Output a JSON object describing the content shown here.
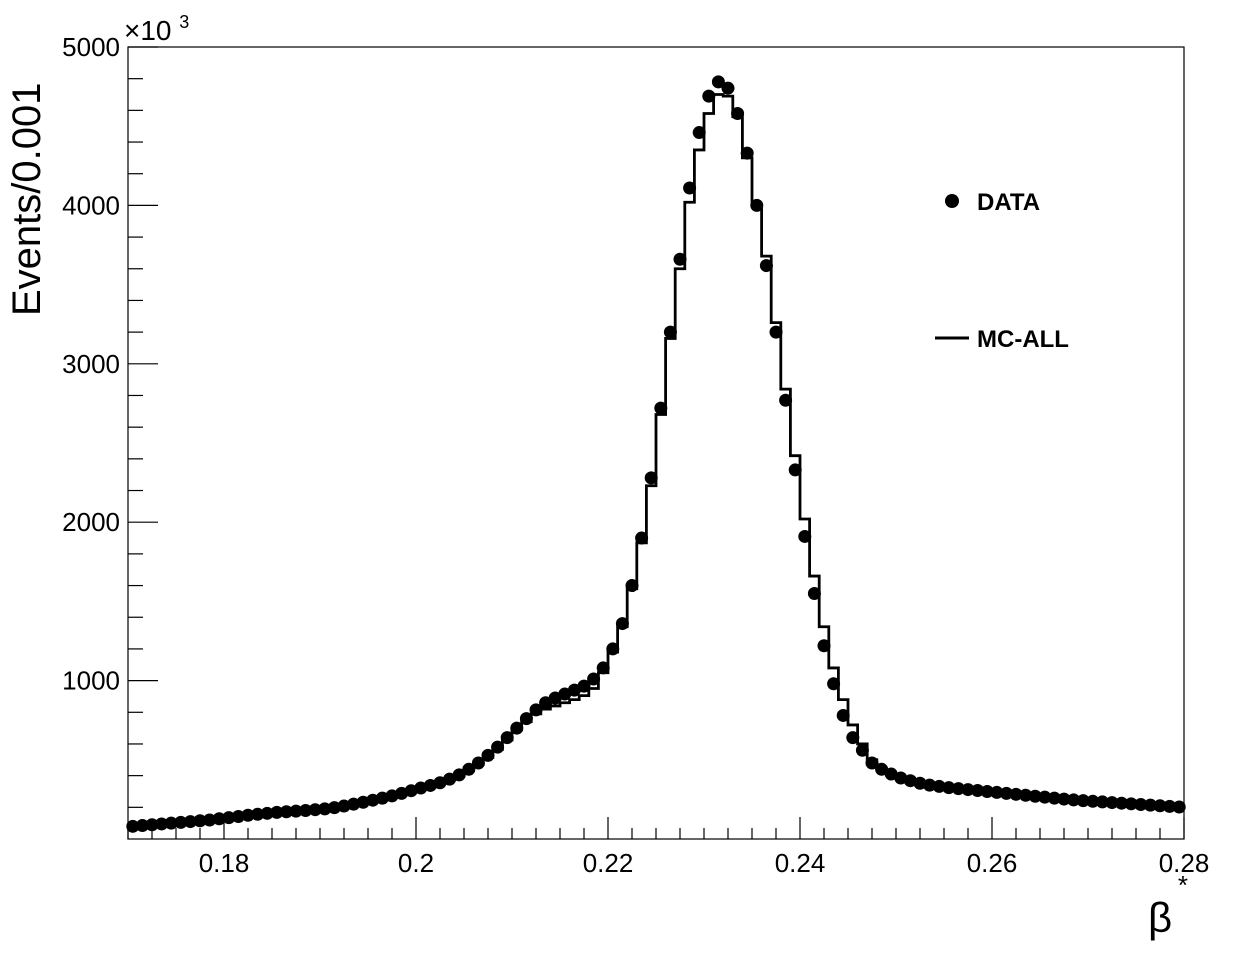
{
  "chart_data": {
    "type": "scatter",
    "title": "",
    "xlabel": "β",
    "xlabel_superscript": "*",
    "ylabel": "Events/0.001",
    "y_multiplier": "×10",
    "y_multiplier_exp": "3",
    "xlim": [
      0.17,
      0.28
    ],
    "ylim": [
      0,
      5000
    ],
    "x_ticks": [
      0.18,
      0.2,
      0.22,
      0.24,
      0.26,
      0.28
    ],
    "x_tick_labels": [
      "0.18",
      "0.2",
      "0.22",
      "0.24",
      "0.26",
      "0.28"
    ],
    "y_ticks": [
      1000,
      2000,
      3000,
      4000,
      5000
    ],
    "y_tick_labels": [
      "1000",
      "2000",
      "3000",
      "4000",
      "5000"
    ],
    "grid": false,
    "legend_position": "top-right",
    "bin_width": 0.001,
    "series": [
      {
        "name": "DATA",
        "style": "markers",
        "color": "#000000",
        "x": [
          0.1705,
          0.1715,
          0.1725,
          0.1735,
          0.1745,
          0.1755,
          0.1765,
          0.1775,
          0.1785,
          0.1795,
          0.1805,
          0.1815,
          0.1825,
          0.1835,
          0.1845,
          0.1855,
          0.1865,
          0.1875,
          0.1885,
          0.1895,
          0.1905,
          0.1915,
          0.1925,
          0.1935,
          0.1945,
          0.1955,
          0.1965,
          0.1975,
          0.1985,
          0.1995,
          0.2005,
          0.2015,
          0.2025,
          0.2035,
          0.2045,
          0.2055,
          0.2065,
          0.2075,
          0.2085,
          0.2095,
          0.2105,
          0.2115,
          0.2125,
          0.2135,
          0.2145,
          0.2155,
          0.2165,
          0.2175,
          0.2185,
          0.2195,
          0.2205,
          0.2215,
          0.2225,
          0.2235,
          0.2245,
          0.2255,
          0.2265,
          0.2275,
          0.2285,
          0.2295,
          0.2305,
          0.2315,
          0.2325,
          0.2335,
          0.2345,
          0.2355,
          0.2365,
          0.2375,
          0.2385,
          0.2395,
          0.2405,
          0.2415,
          0.2425,
          0.2435,
          0.2445,
          0.2455,
          0.2465,
          0.2475,
          0.2485,
          0.2495,
          0.2505,
          0.2515,
          0.2525,
          0.2535,
          0.2545,
          0.2555,
          0.2565,
          0.2575,
          0.2585,
          0.2595,
          0.2605,
          0.2615,
          0.2625,
          0.2635,
          0.2645,
          0.2655,
          0.2665,
          0.2675,
          0.2685,
          0.2695,
          0.2705,
          0.2715,
          0.2725,
          0.2735,
          0.2745,
          0.2755,
          0.2765,
          0.2775,
          0.2785,
          0.2795
        ],
        "y": [
          80,
          85,
          90,
          95,
          100,
          105,
          110,
          115,
          120,
          128,
          135,
          142,
          150,
          156,
          162,
          168,
          172,
          176,
          180,
          185,
          190,
          198,
          208,
          220,
          232,
          245,
          258,
          272,
          288,
          305,
          322,
          338,
          355,
          378,
          405,
          440,
          480,
          528,
          580,
          640,
          700,
          760,
          815,
          860,
          890,
          915,
          940,
          965,
          1010,
          1080,
          1200,
          1360,
          1600,
          1900,
          2280,
          2720,
          3200,
          3660,
          4110,
          4460,
          4690,
          4780,
          4740,
          4580,
          4330,
          4000,
          3620,
          3200,
          2770,
          2330,
          1910,
          1550,
          1220,
          980,
          780,
          640,
          560,
          480,
          440,
          410,
          385,
          368,
          352,
          340,
          332,
          324,
          318,
          312,
          306,
          300,
          294,
          288,
          282,
          276,
          270,
          264,
          258,
          252,
          247,
          242,
          238,
          234,
          230,
          226,
          222,
          218,
          214,
          210,
          206,
          202
        ]
      },
      {
        "name": "MC-ALL",
        "style": "step",
        "color": "#000000",
        "edges": [
          0.17,
          0.171,
          0.172,
          0.173,
          0.174,
          0.175,
          0.176,
          0.177,
          0.178,
          0.179,
          0.18,
          0.181,
          0.182,
          0.183,
          0.184,
          0.185,
          0.186,
          0.187,
          0.188,
          0.189,
          0.19,
          0.191,
          0.192,
          0.193,
          0.194,
          0.195,
          0.196,
          0.197,
          0.198,
          0.199,
          0.2,
          0.201,
          0.202,
          0.203,
          0.204,
          0.205,
          0.206,
          0.207,
          0.208,
          0.209,
          0.21,
          0.211,
          0.212,
          0.213,
          0.214,
          0.215,
          0.216,
          0.217,
          0.218,
          0.219,
          0.22,
          0.221,
          0.222,
          0.223,
          0.224,
          0.225,
          0.226,
          0.227,
          0.228,
          0.229,
          0.23,
          0.231,
          0.232,
          0.233,
          0.234,
          0.235,
          0.236,
          0.237,
          0.238,
          0.239,
          0.24,
          0.241,
          0.242,
          0.243,
          0.244,
          0.245,
          0.246,
          0.247,
          0.248,
          0.249,
          0.25,
          0.251,
          0.252,
          0.253,
          0.254,
          0.255,
          0.256,
          0.257,
          0.258,
          0.259,
          0.26,
          0.261,
          0.262,
          0.263,
          0.264,
          0.265,
          0.266,
          0.267,
          0.268,
          0.269,
          0.27,
          0.271,
          0.272,
          0.273,
          0.274,
          0.275,
          0.276,
          0.277,
          0.278,
          0.279,
          0.28
        ],
        "values": [
          82,
          86,
          91,
          96,
          101,
          106,
          111,
          116,
          121,
          128,
          135,
          142,
          150,
          156,
          162,
          168,
          172,
          176,
          180,
          185,
          190,
          198,
          208,
          220,
          232,
          245,
          258,
          272,
          288,
          305,
          320,
          336,
          352,
          372,
          398,
          432,
          470,
          515,
          565,
          625,
          690,
          740,
          790,
          820,
          840,
          860,
          880,
          905,
          950,
          1050,
          1180,
          1340,
          1580,
          1870,
          2230,
          2680,
          3160,
          3600,
          4020,
          4350,
          4580,
          4700,
          4690,
          4560,
          4300,
          4000,
          3680,
          3260,
          2840,
          2420,
          2020,
          1660,
          1340,
          1080,
          880,
          720,
          600,
          500,
          445,
          410,
          385,
          366,
          350,
          338,
          330,
          322,
          316,
          310,
          304,
          298,
          292,
          286,
          280,
          274,
          268,
          262,
          257,
          252,
          247,
          242,
          238,
          234,
          230,
          226,
          222,
          218,
          214,
          210,
          206,
          202
        ]
      }
    ]
  }
}
